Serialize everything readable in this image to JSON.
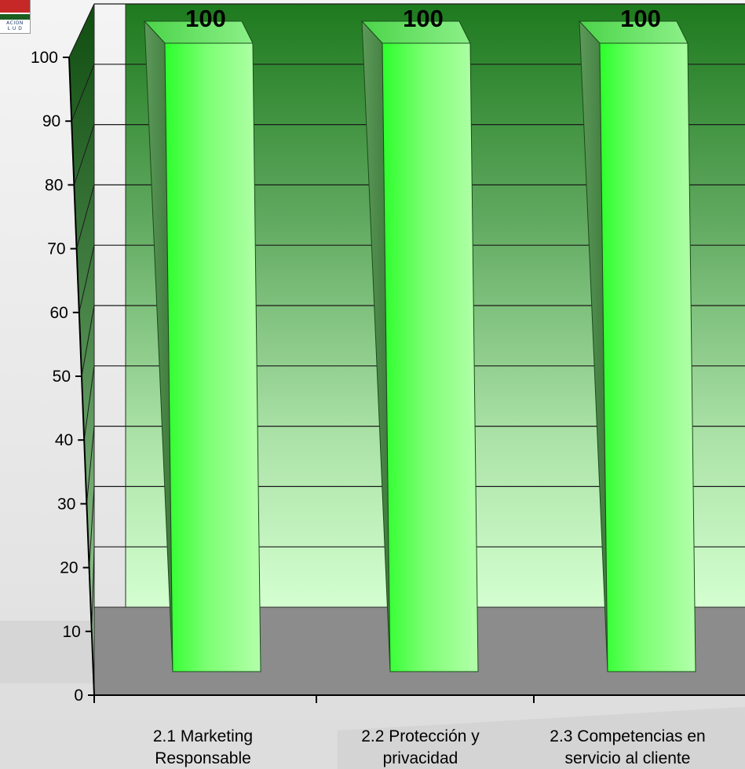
{
  "logo": {
    "line1": "ACION",
    "line2": "L U D"
  },
  "chart_data": {
    "type": "bar",
    "title": "",
    "xlabel": "",
    "ylabel": "",
    "ylim": [
      0,
      100
    ],
    "yticks": [
      0,
      10,
      20,
      30,
      40,
      50,
      60,
      70,
      80,
      90,
      100
    ],
    "grid": true,
    "categories": [
      [
        "2.1  Marketing",
        "Responsable"
      ],
      [
        "2.2 Protección y",
        "privacidad"
      ],
      [
        "2.3 Competencias en",
        "servicio al cliente"
      ]
    ],
    "values": [
      100,
      100,
      100
    ],
    "data_labels": [
      "100",
      "100",
      "100"
    ],
    "colors": {
      "bar_light": "#a8ffa0",
      "bar_bright": "#22ff22",
      "wall_top": "#1e7a1e",
      "wall_bottom": "#d2ffd0",
      "floor": "#8c8c8c"
    }
  }
}
